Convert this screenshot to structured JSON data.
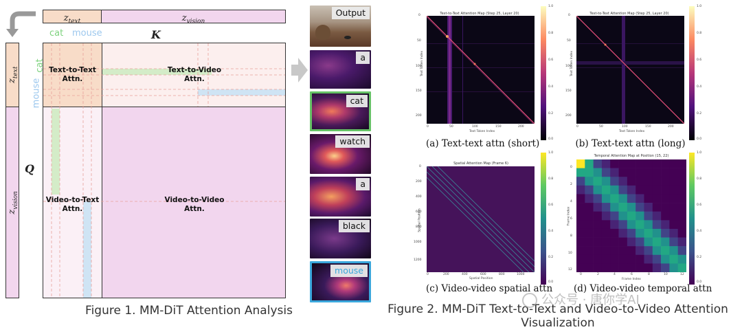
{
  "fig1": {
    "z_text": "z",
    "z_text_sub": "text",
    "z_vision": "z",
    "z_vision_sub": "vision",
    "K": "K",
    "Q": "Q",
    "cat": "cat",
    "mouse": "mouse",
    "tt": "Text-to-Text\nAttn.",
    "tv": "Text-to-Video\nAttn.",
    "vt": "Video-to-Text\nAttn.",
    "vv": "Video-to-Video\nAttn.",
    "caption": "Figure 1. MM-DiT Attention Analysis"
  },
  "thumbs": {
    "output": "Output",
    "words": [
      "a",
      "cat",
      "watch",
      "a",
      "black",
      "mouse"
    ]
  },
  "fig2": {
    "caption_line1": "Figure 2. MM-DiT Text-to-Text and Video-to-Video Attention",
    "caption_line2": "Visualization",
    "a": {
      "subcaption": "(a) Text-text attn (short)",
      "title": "Text-to-Text Attention Map (Step 25, Layer 20)",
      "xlabel": "Text Token Index",
      "ylabel": "Text Token Index",
      "xticks": [
        "0",
        "50",
        "100",
        "150",
        "200"
      ],
      "yticks": [
        "0",
        "50",
        "100",
        "150",
        "200"
      ],
      "cbar": [
        "1.0",
        "0.8",
        "0.6",
        "0.4",
        "0.2",
        "0.0"
      ]
    },
    "b": {
      "subcaption": "(b) Text-text attn (long)",
      "title": "Text-to-Text Attention Map (Step 25, Layer 20)",
      "xlabel": "Text Token Index",
      "ylabel": "Text Token Index",
      "xticks": [
        "0",
        "50",
        "100",
        "150",
        "200"
      ],
      "yticks": [
        "0",
        "50",
        "100",
        "150",
        "200"
      ],
      "cbar": [
        "1.0",
        "0.8",
        "0.6",
        "0.4",
        "0.2",
        "0.0"
      ]
    },
    "c": {
      "subcaption": "(c) Video-video spatial attn",
      "title": "Spatial Attention Map (Frame 6)",
      "xlabel": "Spatial Position",
      "ylabel": "Spatial Position",
      "xticks": [
        "0",
        "200",
        "400",
        "600",
        "800",
        "1000"
      ],
      "yticks": [
        "0",
        "200",
        "400",
        "600",
        "800",
        "1000",
        "1200"
      ],
      "cbar": [
        "1.0",
        "0.8",
        "0.6",
        "0.4",
        "0.2",
        "0.0"
      ]
    },
    "d": {
      "subcaption": "(d) Video-video temporal attn",
      "title": "Temporal Attention Map at Position (15, 22)",
      "xlabel": "Frame Index",
      "ylabel": "Frame Index",
      "xticks": [
        "0",
        "2",
        "4",
        "6",
        "8",
        "10",
        "12"
      ],
      "yticks": [
        "0",
        "2",
        "4",
        "6",
        "8",
        "10",
        "12"
      ],
      "cbar": [
        "1.0",
        "0.8",
        "0.6",
        "0.4",
        "0.2",
        "0.0"
      ]
    }
  },
  "watermark": "公众号 · 唐你学AI",
  "colors": {
    "text_block": "#f8dcc8",
    "vision_block": "#f2d6ee",
    "cat_green": "#7ed27e",
    "mouse_blue": "#9dc8ee",
    "thumb_green": "#66c266",
    "thumb_blue": "#3aa7dc"
  }
}
